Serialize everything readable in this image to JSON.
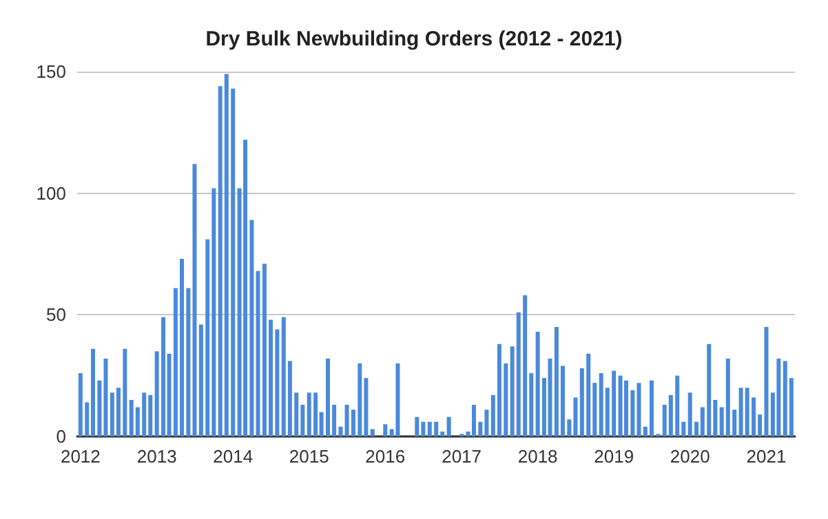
{
  "chart_data": {
    "type": "bar",
    "title": "Dry Bulk Newbuilding Orders (2012 - 2021)",
    "x": [
      "2012-01",
      "2012-02",
      "2012-03",
      "2012-04",
      "2012-05",
      "2012-06",
      "2012-07",
      "2012-08",
      "2012-09",
      "2012-10",
      "2012-11",
      "2012-12",
      "2013-01",
      "2013-02",
      "2013-03",
      "2013-04",
      "2013-05",
      "2013-06",
      "2013-07",
      "2013-08",
      "2013-09",
      "2013-10",
      "2013-11",
      "2013-12",
      "2014-01",
      "2014-02",
      "2014-03",
      "2014-04",
      "2014-05",
      "2014-06",
      "2014-07",
      "2014-08",
      "2014-09",
      "2014-10",
      "2014-11",
      "2014-12",
      "2015-01",
      "2015-02",
      "2015-03",
      "2015-04",
      "2015-05",
      "2015-06",
      "2015-07",
      "2015-08",
      "2015-09",
      "2015-10",
      "2015-11",
      "2015-12",
      "2016-01",
      "2016-02",
      "2016-03",
      "2016-04",
      "2016-05",
      "2016-06",
      "2016-07",
      "2016-08",
      "2016-09",
      "2016-10",
      "2016-11",
      "2016-12",
      "2017-01",
      "2017-02",
      "2017-03",
      "2017-04",
      "2017-05",
      "2017-06",
      "2017-07",
      "2017-08",
      "2017-09",
      "2017-10",
      "2017-11",
      "2017-12",
      "2018-01",
      "2018-02",
      "2018-03",
      "2018-04",
      "2018-05",
      "2018-06",
      "2018-07",
      "2018-08",
      "2018-09",
      "2018-10",
      "2018-11",
      "2018-12",
      "2019-01",
      "2019-02",
      "2019-03",
      "2019-04",
      "2019-05",
      "2019-06",
      "2019-07",
      "2019-08",
      "2019-09",
      "2019-10",
      "2019-11",
      "2019-12",
      "2020-01",
      "2020-02",
      "2020-03",
      "2020-04",
      "2020-05",
      "2020-06",
      "2020-07",
      "2020-08",
      "2020-09",
      "2020-10",
      "2020-11",
      "2020-12",
      "2021-01",
      "2021-02",
      "2021-03",
      "2021-04",
      "2021-05"
    ],
    "values": [
      26,
      14,
      36,
      23,
      32,
      18,
      20,
      36,
      15,
      12,
      18,
      17,
      35,
      49,
      34,
      61,
      73,
      61,
      112,
      46,
      81,
      102,
      144,
      149,
      143,
      102,
      122,
      89,
      68,
      71,
      48,
      44,
      49,
      31,
      18,
      13,
      18,
      18,
      10,
      32,
      13,
      4,
      13,
      11,
      30,
      24,
      3,
      0,
      5,
      3,
      30,
      0,
      0,
      8,
      6,
      6,
      6,
      2,
      8,
      0,
      1,
      2,
      13,
      6,
      11,
      17,
      38,
      30,
      37,
      51,
      58,
      26,
      43,
      24,
      32,
      45,
      29,
      7,
      16,
      28,
      34,
      22,
      26,
      20,
      27,
      25,
      23,
      19,
      22,
      4,
      23,
      1,
      13,
      17,
      25,
      6,
      18,
      6,
      12,
      38,
      15,
      12,
      32,
      11,
      20,
      20,
      16,
      9,
      45,
      18,
      32,
      31,
      24
    ],
    "color": "#4a89dc",
    "xlim": [
      "2011-12-16",
      "2021-05-18"
    ],
    "xticks": [
      "2012",
      "2013",
      "2014",
      "2015",
      "2016",
      "2017",
      "2018",
      "2019",
      "2020",
      "2021"
    ],
    "ylim": [
      0,
      150
    ],
    "yticks": [
      0,
      50,
      100,
      150
    ],
    "grid": "y"
  }
}
